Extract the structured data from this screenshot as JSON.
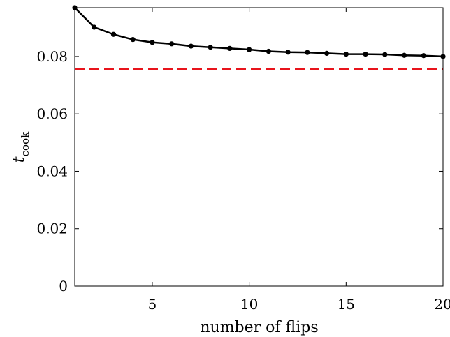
{
  "chart_data": {
    "type": "line",
    "title": "",
    "xlabel": "number of flips",
    "ylabel": {
      "main": "t",
      "sub": "cook"
    },
    "xlim": [
      1,
      20
    ],
    "ylim": [
      0,
      0.097
    ],
    "xticks": [
      {
        "value": 5,
        "label": "5"
      },
      {
        "value": 10,
        "label": "10"
      },
      {
        "value": 15,
        "label": "15"
      },
      {
        "value": 20,
        "label": "20"
      }
    ],
    "yticks": [
      {
        "value": 0,
        "label": "0"
      },
      {
        "value": 0.02,
        "label": "0.02"
      },
      {
        "value": 0.04,
        "label": "0.04"
      },
      {
        "value": 0.06,
        "label": "0.06"
      },
      {
        "value": 0.08,
        "label": "0.08"
      }
    ],
    "grid": false,
    "series": [
      {
        "color": "#000000",
        "marker": "circle",
        "x": [
          1,
          2,
          3,
          4,
          5,
          6,
          7,
          8,
          9,
          10,
          11,
          12,
          13,
          14,
          15,
          16,
          17,
          18,
          19,
          20
        ],
        "y": [
          0.097,
          0.0902,
          0.0877,
          0.0859,
          0.0849,
          0.0844,
          0.0836,
          0.0832,
          0.0828,
          0.0824,
          0.0818,
          0.0815,
          0.0814,
          0.0811,
          0.0808,
          0.0808,
          0.0807,
          0.0804,
          0.0803,
          0.08
        ]
      }
    ],
    "reference_lines": [
      {
        "orientation": "horizontal",
        "y": 0.0755,
        "color": "#e8141c",
        "style": "dashed"
      }
    ]
  }
}
